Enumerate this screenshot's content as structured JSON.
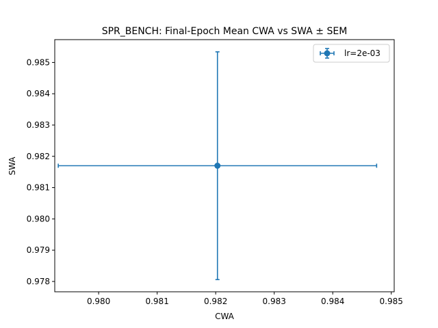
{
  "chart_data": {
    "type": "scatter",
    "title": "SPR_BENCH: Final-Epoch Mean CWA vs SWA ± SEM",
    "xlabel": "CWA",
    "ylabel": "SWA",
    "xlim": [
      0.97925,
      0.98505
    ],
    "ylim": [
      0.97767,
      0.98573
    ],
    "xticks": [
      "0.980",
      "0.981",
      "0.982",
      "0.983",
      "0.984",
      "0.985"
    ],
    "xtick_values": [
      0.98,
      0.981,
      0.982,
      0.983,
      0.984,
      0.985
    ],
    "yticks": [
      "0.978",
      "0.979",
      "0.980",
      "0.981",
      "0.982",
      "0.983",
      "0.984",
      "0.985"
    ],
    "ytick_values": [
      0.978,
      0.979,
      0.98,
      0.981,
      0.982,
      0.983,
      0.984,
      0.985
    ],
    "grid": false,
    "legend_position": "top-right",
    "series": [
      {
        "name": "lr=2e-03",
        "color": "#1f77b4",
        "points": [
          {
            "x": 0.98203,
            "y": 0.9817,
            "xerr": 0.00272,
            "yerr": 0.00364
          }
        ]
      }
    ]
  }
}
